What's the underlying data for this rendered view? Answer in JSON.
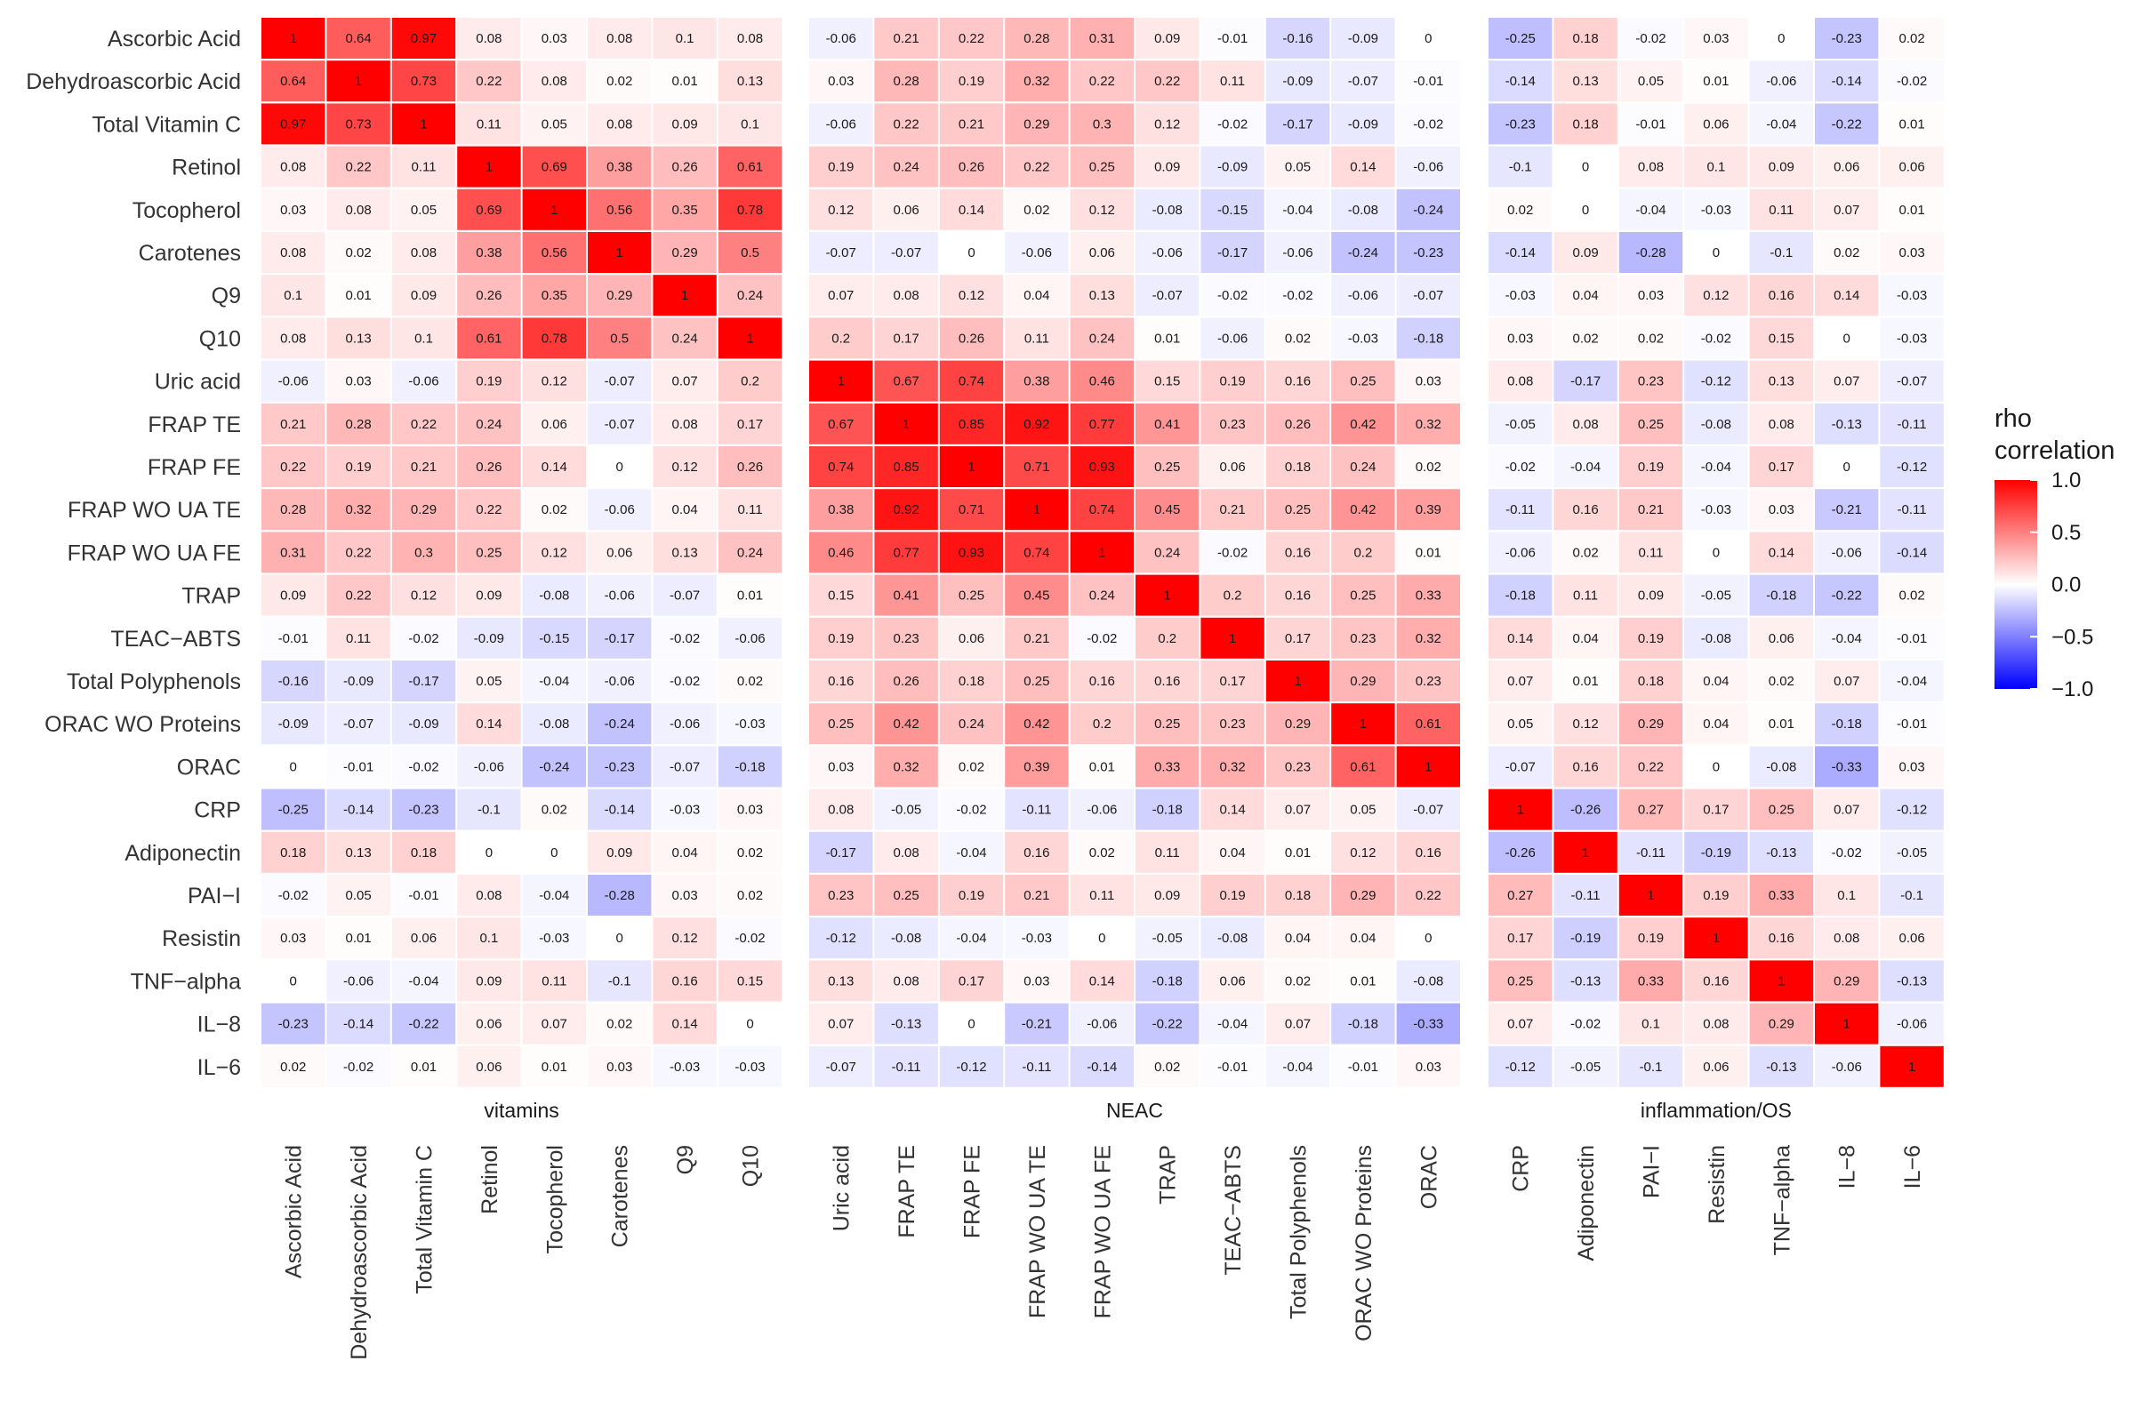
{
  "chart_data": {
    "type": "heatmap",
    "title": "",
    "legend": {
      "title_line1": "rho",
      "title_line2": "correlation",
      "range": [
        -1.0,
        1.0
      ],
      "ticks": [
        "1.0",
        "0.5",
        "0.0",
        "−0.5",
        "−1.0"
      ],
      "tick_values": [
        1.0,
        0.5,
        0.0,
        -0.5,
        -1.0
      ],
      "low_color": "#0000FF",
      "mid_color": "#FFFFFF",
      "high_color": "#FF0000",
      "placement": "right"
    },
    "row_labels": [
      "Ascorbic Acid",
      "Dehydroascorbic Acid",
      "Total Vitamin C",
      "Retinol",
      "Tocopherol",
      "Carotenes",
      "Q9",
      "Q10",
      "Uric acid",
      "FRAP TE",
      "FRAP FE",
      "FRAP WO UA TE",
      "FRAP WO UA FE",
      "TRAP",
      "TEAC−ABTS",
      "Total Polyphenols",
      "ORAC WO Proteins",
      "ORAC",
      "CRP",
      "Adiponectin",
      "PAI−I",
      "Resistin",
      "TNF−alpha",
      "IL−8",
      "IL−6"
    ],
    "column_groups": [
      {
        "name": "vitamins",
        "columns": [
          "Ascorbic Acid",
          "Dehydroascorbic Acid",
          "Total Vitamin C",
          "Retinol",
          "Tocopherol",
          "Carotenes",
          "Q9",
          "Q10"
        ]
      },
      {
        "name": "NEAC",
        "columns": [
          "Uric acid",
          "FRAP TE",
          "FRAP FE",
          "FRAP WO UA TE",
          "FRAP WO UA FE",
          "TRAP",
          "TEAC−ABTS",
          "Total Polyphenols",
          "ORAC WO Proteins",
          "ORAC"
        ]
      },
      {
        "name": "inflammation/OS",
        "columns": [
          "CRP",
          "Adiponectin",
          "PAI−I",
          "Resistin",
          "TNF−alpha",
          "IL−8",
          "IL−6"
        ]
      }
    ],
    "values": [
      [
        "1",
        "0.64",
        "0.97",
        "0.08",
        "0.03",
        "0.08",
        "0.1",
        "0.08",
        "-0.06",
        "0.21",
        "0.22",
        "0.28",
        "0.31",
        "0.09",
        "-0.01",
        "-0.16",
        "-0.09",
        "0",
        "-0.25",
        "0.18",
        "-0.02",
        "0.03",
        "0",
        "-0.23",
        "0.02"
      ],
      [
        "0.64",
        "1",
        "0.73",
        "0.22",
        "0.08",
        "0.02",
        "0.01",
        "0.13",
        "0.03",
        "0.28",
        "0.19",
        "0.32",
        "0.22",
        "0.22",
        "0.11",
        "-0.09",
        "-0.07",
        "-0.01",
        "-0.14",
        "0.13",
        "0.05",
        "0.01",
        "-0.06",
        "-0.14",
        "-0.02"
      ],
      [
        "0.97",
        "0.73",
        "1",
        "0.11",
        "0.05",
        "0.08",
        "0.09",
        "0.1",
        "-0.06",
        "0.22",
        "0.21",
        "0.29",
        "0.3",
        "0.12",
        "-0.02",
        "-0.17",
        "-0.09",
        "-0.02",
        "-0.23",
        "0.18",
        "-0.01",
        "0.06",
        "-0.04",
        "-0.22",
        "0.01"
      ],
      [
        "0.08",
        "0.22",
        "0.11",
        "1",
        "0.69",
        "0.38",
        "0.26",
        "0.61",
        "0.19",
        "0.24",
        "0.26",
        "0.22",
        "0.25",
        "0.09",
        "-0.09",
        "0.05",
        "0.14",
        "-0.06",
        "-0.1",
        "0",
        "0.08",
        "0.1",
        "0.09",
        "0.06",
        "0.06"
      ],
      [
        "0.03",
        "0.08",
        "0.05",
        "0.69",
        "1",
        "0.56",
        "0.35",
        "0.78",
        "0.12",
        "0.06",
        "0.14",
        "0.02",
        "0.12",
        "-0.08",
        "-0.15",
        "-0.04",
        "-0.08",
        "-0.24",
        "0.02",
        "0",
        "-0.04",
        "-0.03",
        "0.11",
        "0.07",
        "0.01"
      ],
      [
        "0.08",
        "0.02",
        "0.08",
        "0.38",
        "0.56",
        "1",
        "0.29",
        "0.5",
        "-0.07",
        "-0.07",
        "0",
        "-0.06",
        "0.06",
        "-0.06",
        "-0.17",
        "-0.06",
        "-0.24",
        "-0.23",
        "-0.14",
        "0.09",
        "-0.28",
        "0",
        "-0.1",
        "0.02",
        "0.03"
      ],
      [
        "0.1",
        "0.01",
        "0.09",
        "0.26",
        "0.35",
        "0.29",
        "1",
        "0.24",
        "0.07",
        "0.08",
        "0.12",
        "0.04",
        "0.13",
        "-0.07",
        "-0.02",
        "-0.02",
        "-0.06",
        "-0.07",
        "-0.03",
        "0.04",
        "0.03",
        "0.12",
        "0.16",
        "0.14",
        "-0.03"
      ],
      [
        "0.08",
        "0.13",
        "0.1",
        "0.61",
        "0.78",
        "0.5",
        "0.24",
        "1",
        "0.2",
        "0.17",
        "0.26",
        "0.11",
        "0.24",
        "0.01",
        "-0.06",
        "0.02",
        "-0.03",
        "-0.18",
        "0.03",
        "0.02",
        "0.02",
        "-0.02",
        "0.15",
        "0",
        "-0.03"
      ],
      [
        "-0.06",
        "0.03",
        "-0.06",
        "0.19",
        "0.12",
        "-0.07",
        "0.07",
        "0.2",
        "1",
        "0.67",
        "0.74",
        "0.38",
        "0.46",
        "0.15",
        "0.19",
        "0.16",
        "0.25",
        "0.03",
        "0.08",
        "-0.17",
        "0.23",
        "-0.12",
        "0.13",
        "0.07",
        "-0.07"
      ],
      [
        "0.21",
        "0.28",
        "0.22",
        "0.24",
        "0.06",
        "-0.07",
        "0.08",
        "0.17",
        "0.67",
        "1",
        "0.85",
        "0.92",
        "0.77",
        "0.41",
        "0.23",
        "0.26",
        "0.42",
        "0.32",
        "-0.05",
        "0.08",
        "0.25",
        "-0.08",
        "0.08",
        "-0.13",
        "-0.11"
      ],
      [
        "0.22",
        "0.19",
        "0.21",
        "0.26",
        "0.14",
        "0",
        "0.12",
        "0.26",
        "0.74",
        "0.85",
        "1",
        "0.71",
        "0.93",
        "0.25",
        "0.06",
        "0.18",
        "0.24",
        "0.02",
        "-0.02",
        "-0.04",
        "0.19",
        "-0.04",
        "0.17",
        "0",
        "-0.12"
      ],
      [
        "0.28",
        "0.32",
        "0.29",
        "0.22",
        "0.02",
        "-0.06",
        "0.04",
        "0.11",
        "0.38",
        "0.92",
        "0.71",
        "1",
        "0.74",
        "0.45",
        "0.21",
        "0.25",
        "0.42",
        "0.39",
        "-0.11",
        "0.16",
        "0.21",
        "-0.03",
        "0.03",
        "-0.21",
        "-0.11"
      ],
      [
        "0.31",
        "0.22",
        "0.3",
        "0.25",
        "0.12",
        "0.06",
        "0.13",
        "0.24",
        "0.46",
        "0.77",
        "0.93",
        "0.74",
        "1",
        "0.24",
        "-0.02",
        "0.16",
        "0.2",
        "0.01",
        "-0.06",
        "0.02",
        "0.11",
        "0",
        "0.14",
        "-0.06",
        "-0.14"
      ],
      [
        "0.09",
        "0.22",
        "0.12",
        "0.09",
        "-0.08",
        "-0.06",
        "-0.07",
        "0.01",
        "0.15",
        "0.41",
        "0.25",
        "0.45",
        "0.24",
        "1",
        "0.2",
        "0.16",
        "0.25",
        "0.33",
        "-0.18",
        "0.11",
        "0.09",
        "-0.05",
        "-0.18",
        "-0.22",
        "0.02"
      ],
      [
        "-0.01",
        "0.11",
        "-0.02",
        "-0.09",
        "-0.15",
        "-0.17",
        "-0.02",
        "-0.06",
        "0.19",
        "0.23",
        "0.06",
        "0.21",
        "-0.02",
        "0.2",
        "1",
        "0.17",
        "0.23",
        "0.32",
        "0.14",
        "0.04",
        "0.19",
        "-0.08",
        "0.06",
        "-0.04",
        "-0.01"
      ],
      [
        "-0.16",
        "-0.09",
        "-0.17",
        "0.05",
        "-0.04",
        "-0.06",
        "-0.02",
        "0.02",
        "0.16",
        "0.26",
        "0.18",
        "0.25",
        "0.16",
        "0.16",
        "0.17",
        "1",
        "0.29",
        "0.23",
        "0.07",
        "0.01",
        "0.18",
        "0.04",
        "0.02",
        "0.07",
        "-0.04"
      ],
      [
        "-0.09",
        "-0.07",
        "-0.09",
        "0.14",
        "-0.08",
        "-0.24",
        "-0.06",
        "-0.03",
        "0.25",
        "0.42",
        "0.24",
        "0.42",
        "0.2",
        "0.25",
        "0.23",
        "0.29",
        "1",
        "0.61",
        "0.05",
        "0.12",
        "0.29",
        "0.04",
        "0.01",
        "-0.18",
        "-0.01"
      ],
      [
        "0",
        "-0.01",
        "-0.02",
        "-0.06",
        "-0.24",
        "-0.23",
        "-0.07",
        "-0.18",
        "0.03",
        "0.32",
        "0.02",
        "0.39",
        "0.01",
        "0.33",
        "0.32",
        "0.23",
        "0.61",
        "1",
        "-0.07",
        "0.16",
        "0.22",
        "0",
        "-0.08",
        "-0.33",
        "0.03"
      ],
      [
        "-0.25",
        "-0.14",
        "-0.23",
        "-0.1",
        "0.02",
        "-0.14",
        "-0.03",
        "0.03",
        "0.08",
        "-0.05",
        "-0.02",
        "-0.11",
        "-0.06",
        "-0.18",
        "0.14",
        "0.07",
        "0.05",
        "-0.07",
        "1",
        "-0.26",
        "0.27",
        "0.17",
        "0.25",
        "0.07",
        "-0.12"
      ],
      [
        "0.18",
        "0.13",
        "0.18",
        "0",
        "0",
        "0.09",
        "0.04",
        "0.02",
        "-0.17",
        "0.08",
        "-0.04",
        "0.16",
        "0.02",
        "0.11",
        "0.04",
        "0.01",
        "0.12",
        "0.16",
        "-0.26",
        "1",
        "-0.11",
        "-0.19",
        "-0.13",
        "-0.02",
        "-0.05"
      ],
      [
        "-0.02",
        "0.05",
        "-0.01",
        "0.08",
        "-0.04",
        "-0.28",
        "0.03",
        "0.02",
        "0.23",
        "0.25",
        "0.19",
        "0.21",
        "0.11",
        "0.09",
        "0.19",
        "0.18",
        "0.29",
        "0.22",
        "0.27",
        "-0.11",
        "1",
        "0.19",
        "0.33",
        "0.1",
        "-0.1"
      ],
      [
        "0.03",
        "0.01",
        "0.06",
        "0.1",
        "-0.03",
        "0",
        "0.12",
        "-0.02",
        "-0.12",
        "-0.08",
        "-0.04",
        "-0.03",
        "0",
        "-0.05",
        "-0.08",
        "0.04",
        "0.04",
        "0",
        "0.17",
        "-0.19",
        "0.19",
        "1",
        "0.16",
        "0.08",
        "0.06"
      ],
      [
        "0",
        "-0.06",
        "-0.04",
        "0.09",
        "0.11",
        "-0.1",
        "0.16",
        "0.15",
        "0.13",
        "0.08",
        "0.17",
        "0.03",
        "0.14",
        "-0.18",
        "0.06",
        "0.02",
        "0.01",
        "-0.08",
        "0.25",
        "-0.13",
        "0.33",
        "0.16",
        "1",
        "0.29",
        "-0.13"
      ],
      [
        "-0.23",
        "-0.14",
        "-0.22",
        "0.06",
        "0.07",
        "0.02",
        "0.14",
        "0",
        "0.07",
        "-0.13",
        "0",
        "-0.21",
        "-0.06",
        "-0.22",
        "-0.04",
        "0.07",
        "-0.18",
        "-0.33",
        "0.07",
        "-0.02",
        "0.1",
        "0.08",
        "0.29",
        "1",
        "-0.06"
      ],
      [
        "0.02",
        "-0.02",
        "0.01",
        "0.06",
        "0.01",
        "0.03",
        "-0.03",
        "-0.03",
        "-0.07",
        "-0.11",
        "-0.12",
        "-0.11",
        "-0.14",
        "0.02",
        "-0.01",
        "-0.04",
        "-0.01",
        "0.03",
        "-0.12",
        "-0.05",
        "-0.1",
        "0.06",
        "-0.13",
        "-0.06",
        "1"
      ]
    ]
  }
}
